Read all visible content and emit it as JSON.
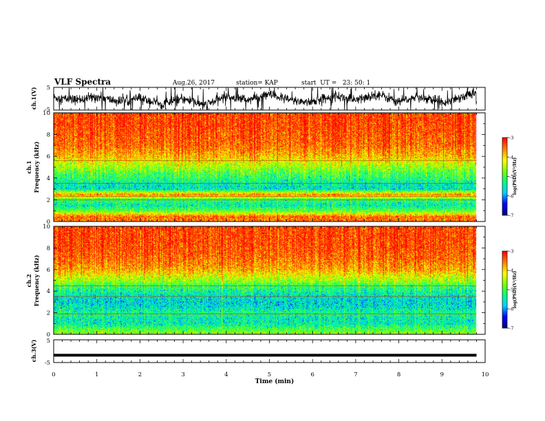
{
  "header": {
    "title": "VLF Spectra",
    "date": "Aug.26, 2017",
    "station": "station= KAP",
    "start_ut": "start  UT =   23: 50: 1"
  },
  "colors": {
    "line": "#000000",
    "colormap": [
      "#000080",
      "#0000ff",
      "#00d0ff",
      "#00ff80",
      "#80ff00",
      "#ffff00",
      "#ff8000",
      "#ff0000",
      "#ffffff"
    ]
  },
  "chart_data": [
    {
      "type": "line",
      "id": "ch1-waveform",
      "ylabel": "ch.1(V)",
      "ylim": [
        -5,
        5
      ],
      "yticks": [
        "5",
        "-5"
      ],
      "xlim": [
        0,
        10
      ],
      "series": [
        {
          "x": [
            0,
            0.5,
            1,
            1.5,
            2,
            2.5,
            3,
            3.5,
            4,
            4.5,
            5,
            5.5,
            6,
            6.5,
            7,
            7.5,
            8,
            8.5,
            9,
            9.5,
            9.8
          ],
          "values": [
            0.5,
            -0.5,
            0.8,
            -1.2,
            0.2,
            -2.5,
            0.0,
            -3.0,
            1.2,
            -0.5,
            1.8,
            -0.8,
            -1.5,
            1.5,
            -0.8,
            2.0,
            -1.2,
            0.8,
            -1.5,
            1.0,
            3.0
          ]
        }
      ]
    },
    {
      "type": "heatmap",
      "id": "ch1-spectrogram",
      "ylabel": "ch.1\nFrequency (kHz)",
      "ylim": [
        0,
        10
      ],
      "yticks": [
        "0",
        "2",
        "4",
        "6",
        "8",
        "10"
      ],
      "xlim": [
        0,
        10
      ],
      "data_end_min": 9.8,
      "value_label": "log(PSD)(V²/Hz)",
      "clim": [
        -7,
        -3
      ],
      "cbticks": [
        "-3",
        "-4",
        "-5",
        "-6",
        "-7"
      ],
      "profile_freq_khz": [
        0,
        0.5,
        1,
        1.5,
        2,
        2.5,
        3,
        3.5,
        4,
        4.5,
        5,
        5.5,
        6,
        7,
        8,
        9,
        10
      ],
      "profile_log_psd": [
        -3.6,
        -3.5,
        -4.9,
        -5.5,
        -5.2,
        -3.6,
        -5.6,
        -5.5,
        -5.2,
        -5.0,
        -4.6,
        -4.3,
        -3.9,
        -3.5,
        -3.4,
        -3.3,
        -3.3
      ],
      "lines_khz": [
        2.0,
        2.3,
        3.5,
        5.6
      ]
    },
    {
      "type": "heatmap",
      "id": "ch2-spectrogram",
      "ylabel": "ch.2\nFrequency (kHz)",
      "ylim": [
        0,
        10
      ],
      "yticks": [
        "0",
        "2",
        "4",
        "6",
        "8",
        "10"
      ],
      "xlim": [
        0,
        10
      ],
      "data_end_min": 9.8,
      "value_label": "log(PSD)(V²/Hz)",
      "clim": [
        -7,
        -3
      ],
      "cbticks": [
        "-3",
        "-4",
        "-5",
        "-6",
        "-7"
      ],
      "profile_freq_khz": [
        0,
        0.5,
        1,
        1.5,
        2,
        2.5,
        3,
        3.5,
        4,
        4.5,
        5,
        5.5,
        6,
        7,
        8,
        9,
        10
      ],
      "profile_log_psd": [
        -4.6,
        -5.0,
        -5.5,
        -5.5,
        -5.3,
        -5.6,
        -5.7,
        -5.6,
        -5.4,
        -5.1,
        -4.6,
        -4.2,
        -3.8,
        -3.5,
        -3.35,
        -3.3,
        -3.3
      ],
      "lines_khz": [
        1.9,
        3.5,
        4.5
      ]
    },
    {
      "type": "line",
      "id": "ch3-waveform",
      "ylabel": "ch.3(V)",
      "ylim": [
        -5,
        5
      ],
      "yticks": [
        "5",
        "-5"
      ],
      "xlim": [
        0,
        10
      ],
      "xlabel": "Time (min)",
      "xticks": [
        "0",
        "1",
        "2",
        "3",
        "4",
        "5",
        "6",
        "7",
        "8",
        "9",
        "10"
      ],
      "series": [
        {
          "x": [
            0,
            9.8
          ],
          "values": [
            -1.8,
            -1.8
          ]
        }
      ]
    }
  ]
}
